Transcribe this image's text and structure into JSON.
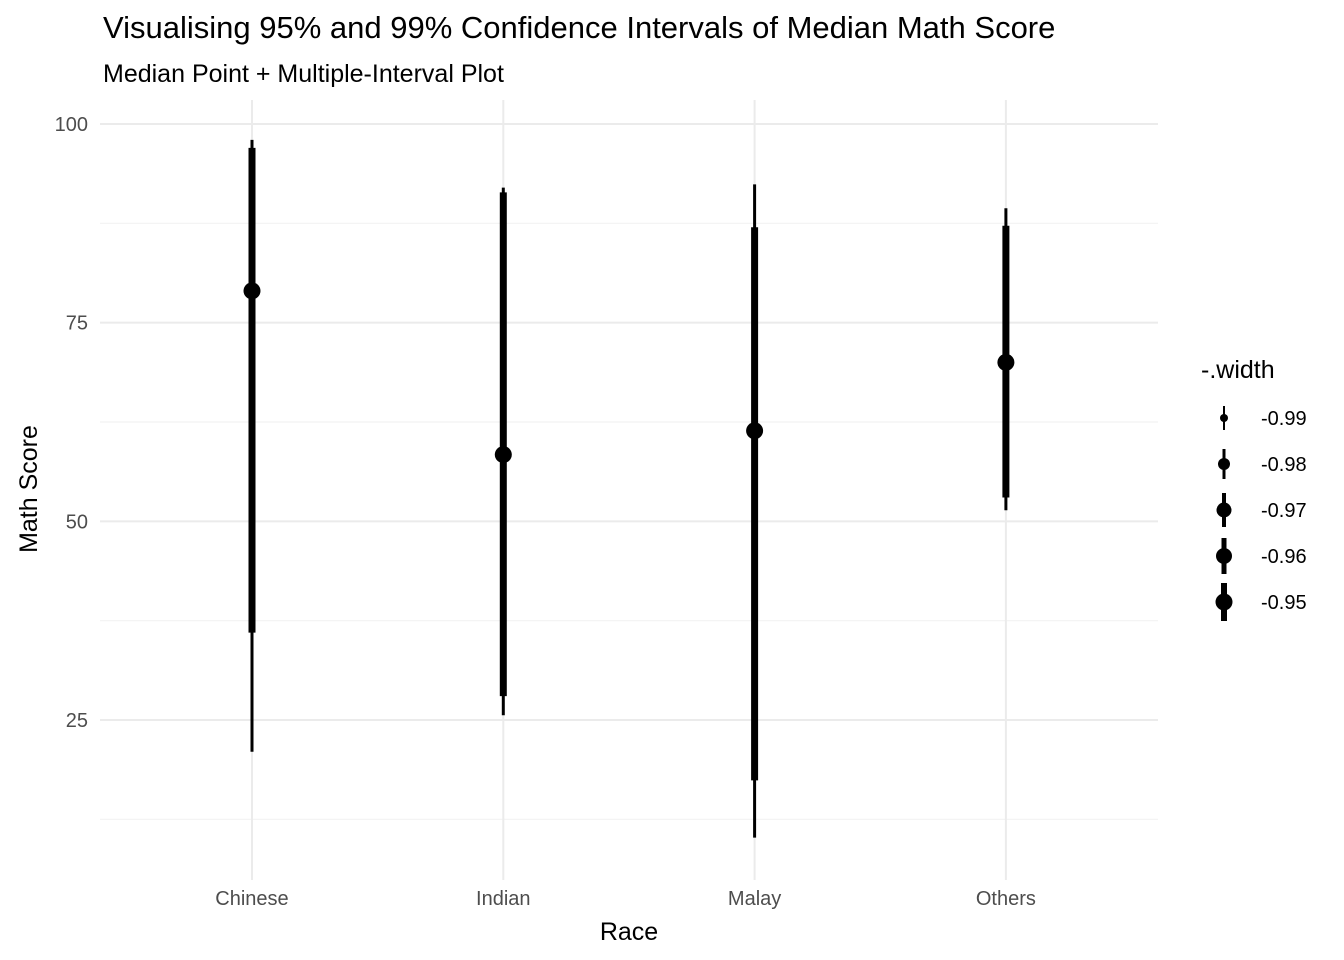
{
  "chart_data": {
    "type": "pointinterval",
    "title": "Visualising 95% and 99% Confidence Intervals of Median Math Score",
    "subtitle": "Median Point + Multiple-Interval Plot",
    "xlabel": "Race",
    "ylabel": "Math Score",
    "ylim": [
      8,
      104
    ],
    "yticks": [
      25,
      50,
      75,
      100
    ],
    "ytick_labels": [
      "25",
      "50",
      "75",
      "100"
    ],
    "categories": [
      "Chinese",
      "Indian",
      "Malay",
      "Others"
    ],
    "points": [
      {
        "category": "Chinese",
        "median": 79,
        "ci95": [
          36,
          97
        ],
        "ci99": [
          21,
          98
        ]
      },
      {
        "category": "Indian",
        "median": 58.4,
        "ci95": [
          28,
          91.4
        ],
        "ci99": [
          25.6,
          92
        ]
      },
      {
        "category": "Malay",
        "median": 61.4,
        "ci95": [
          17.4,
          87
        ],
        "ci99": [
          10.2,
          92.4
        ]
      },
      {
        "category": "Others",
        "median": 70,
        "ci95": [
          53,
          87.2
        ],
        "ci99": [
          51.4,
          89.4
        ]
      }
    ],
    "legend": {
      "title": "-.width",
      "position": "right",
      "entries": [
        "-0.99",
        "-0.98",
        "-0.97",
        "-0.96",
        "-0.95"
      ]
    },
    "grid": true
  }
}
